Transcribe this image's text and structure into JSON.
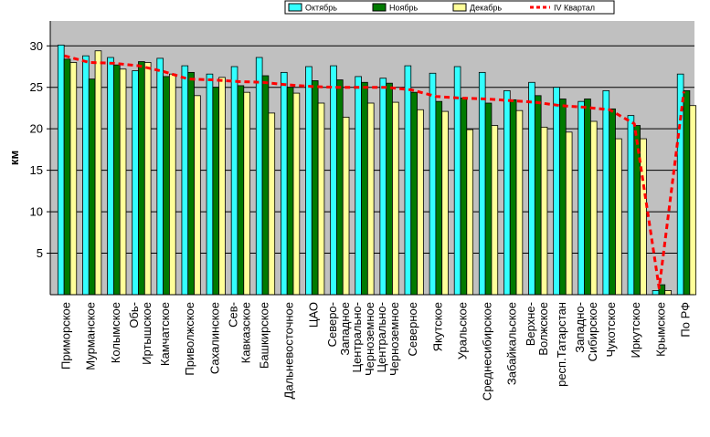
{
  "chart_data": {
    "type": "bar",
    "ylabel": "км",
    "ylim": [
      0,
      33
    ],
    "yticks": [
      5,
      10,
      15,
      20,
      25,
      30
    ],
    "grid": true,
    "legend_position": "top-right",
    "categories": [
      [
        "Приморское"
      ],
      [
        "Мурманское"
      ],
      [
        "Колымское"
      ],
      [
        "Обь-",
        "Иртышское"
      ],
      [
        "Камчатское"
      ],
      [
        "Приволжское"
      ],
      [
        "Сахалинское"
      ],
      [
        "Сев-",
        "Кавказское"
      ],
      [
        "Башкирское"
      ],
      [
        "Дальневосточное"
      ],
      [
        "ЦАО"
      ],
      [
        "Северо-",
        "Западное"
      ],
      [
        "Центрально-",
        "Черноземное"
      ],
      [
        "Центрально-",
        "Черноземное"
      ],
      [
        "Северное"
      ],
      [
        "Якутское"
      ],
      [
        "Уральское"
      ],
      [
        "Среднесибирское"
      ],
      [
        "Забайкальское"
      ],
      [
        "Верхне-",
        "Волжское"
      ],
      [
        "респ.Татарстан"
      ],
      [
        "Западно-",
        "Сибирское"
      ],
      [
        "Чукотское"
      ],
      [
        "Иркутское"
      ],
      [
        "Крымское"
      ],
      [
        "По РФ"
      ]
    ],
    "series": [
      {
        "name": "Октябрь",
        "type": "bar",
        "color": "#33ffff",
        "values": [
          30.1,
          28.8,
          28.6,
          27.0,
          28.5,
          27.6,
          26.6,
          27.5,
          28.6,
          26.8,
          27.5,
          27.6,
          26.3,
          26.1,
          27.6,
          26.7,
          27.5,
          26.8,
          24.6,
          25.6,
          25.0,
          23.3,
          24.6,
          21.6,
          0.5,
          26.6
        ]
      },
      {
        "name": "Ноябрь",
        "type": "bar",
        "color": "#007a00",
        "values": [
          28.4,
          26.0,
          27.7,
          28.1,
          26.3,
          26.8,
          25.0,
          25.2,
          26.4,
          25.0,
          25.8,
          25.9,
          25.6,
          25.5,
          24.4,
          23.3,
          23.7,
          23.1,
          23.5,
          24.0,
          23.6,
          23.6,
          22.4,
          20.4,
          1.2,
          24.6
        ]
      },
      {
        "name": "Декабрь",
        "type": "bar",
        "color": "#ffff99",
        "values": [
          28.0,
          29.4,
          27.2,
          28.0,
          26.6,
          24.0,
          26.2,
          24.4,
          21.9,
          24.3,
          23.1,
          21.4,
          23.1,
          23.2,
          22.3,
          22.1,
          19.9,
          20.4,
          22.2,
          20.2,
          19.6,
          20.9,
          18.8,
          18.8,
          0.5,
          22.8
        ]
      },
      {
        "name": "IV Квартал",
        "type": "line",
        "color": "#ff0000",
        "values": [
          28.8,
          28.0,
          27.9,
          27.6,
          26.9,
          26.0,
          25.9,
          25.7,
          25.6,
          25.3,
          25.1,
          25.0,
          25.0,
          25.0,
          24.7,
          23.9,
          23.7,
          23.6,
          23.4,
          23.2,
          22.8,
          22.6,
          22.3,
          20.6,
          0.8,
          24.5
        ]
      }
    ]
  }
}
